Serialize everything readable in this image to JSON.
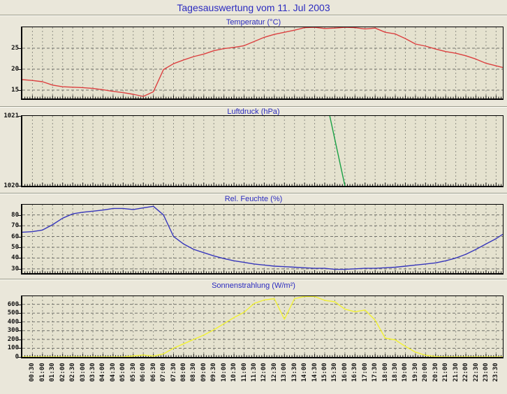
{
  "title": "Tagesauswertung vom 11. Jul 2003",
  "colors": {
    "page_bg": "#eae7da",
    "plot_bg": "#e5e2cf",
    "title_text": "#2b2bc0",
    "axis_text": "#111111",
    "grid_vertical": "#8f8f85",
    "grid_horizontal": "#70706a",
    "temperature_line": "#dc4040",
    "pressure_line": "#18a044",
    "humidity_line": "#3636bc",
    "solar_line": "#f2f232"
  },
  "x_axis": {
    "labels": [
      "00:30",
      "01:00",
      "01:30",
      "02:00",
      "02:30",
      "03:00",
      "03:30",
      "04:00",
      "04:30",
      "05:00",
      "05:30",
      "06:00",
      "06:30",
      "07:00",
      "07:30",
      "08:00",
      "08:30",
      "09:00",
      "09:30",
      "10:00",
      "10:30",
      "11:00",
      "11:30",
      "12:00",
      "12:30",
      "13:00",
      "13:30",
      "14:00",
      "14:30",
      "15:00",
      "15:30",
      "16:00",
      "16:30",
      "17:00",
      "17:30",
      "18:00",
      "18:30",
      "19:00",
      "19:30",
      "20:00",
      "20:30",
      "21:00",
      "21:30",
      "22:00",
      "22:30",
      "23:00",
      "23:30"
    ],
    "start_hour": 0,
    "end_hour": 23.8333,
    "label_interval_minutes": 30,
    "minor_tick_interval_minutes": 7.5
  },
  "chart_data": [
    {
      "type": "line",
      "id": "temperature",
      "title": "Temperatur (°C)",
      "color": "#dc4040",
      "y_ticks": [
        15,
        20,
        25
      ],
      "y_min": 13.0,
      "y_max": 30.0,
      "grid": true,
      "x": [
        0,
        0.5,
        1,
        1.5,
        2,
        2.5,
        3,
        3.5,
        4,
        4.5,
        5,
        5.5,
        6,
        6.5,
        7,
        7.5,
        8,
        8.5,
        9,
        9.5,
        10,
        10.5,
        11,
        11.5,
        12,
        12.5,
        13,
        13.5,
        14,
        14.5,
        15,
        15.5,
        16,
        16.5,
        17,
        17.5,
        18,
        18.5,
        19,
        19.5,
        20,
        20.5,
        21,
        21.5,
        22,
        22.5,
        23,
        23.5,
        23.83
      ],
      "values": [
        17.5,
        17.3,
        17.0,
        16.2,
        15.8,
        15.7,
        15.6,
        15.4,
        15.1,
        14.7,
        14.4,
        14.0,
        13.5,
        14.6,
        19.9,
        21.3,
        22.2,
        23.0,
        23.6,
        24.4,
        24.9,
        25.2,
        25.6,
        26.6,
        27.6,
        28.3,
        28.8,
        29.3,
        29.9,
        30.0,
        29.7,
        29.8,
        30.0,
        29.9,
        29.6,
        29.8,
        28.8,
        28.4,
        27.3,
        26.0,
        25.5,
        24.8,
        24.2,
        23.8,
        23.2,
        22.4,
        21.4,
        20.8,
        20.4
      ]
    },
    {
      "type": "line",
      "id": "pressure",
      "title": "Luftdruck (hPa)",
      "color": "#18a044",
      "y_ticks": [
        1020,
        1021
      ],
      "y_min": 1020,
      "y_max": 1021,
      "grid": true,
      "x": [
        15.25,
        16.0
      ],
      "values": [
        1021,
        1020
      ]
    },
    {
      "type": "line",
      "id": "humidity",
      "title": "Rel. Feuchte (%)",
      "color": "#3636bc",
      "y_ticks": [
        30,
        40,
        50,
        60,
        70,
        80
      ],
      "y_min": 26,
      "y_max": 89.5,
      "grid": true,
      "x": [
        0,
        0.5,
        1,
        1.5,
        2,
        2.5,
        3,
        3.5,
        4,
        4.5,
        5,
        5.5,
        6,
        6.5,
        7,
        7.5,
        8,
        8.5,
        9,
        9.5,
        10,
        10.5,
        11,
        11.5,
        12,
        12.5,
        13,
        13.5,
        14,
        14.5,
        15,
        15.5,
        16,
        16.5,
        17,
        17.5,
        18,
        18.5,
        19,
        19.5,
        20,
        20.5,
        21,
        21.5,
        22,
        22.5,
        23,
        23.5,
        23.83
      ],
      "values": [
        64,
        64.5,
        66,
        71,
        77,
        81,
        82.5,
        83.5,
        84.5,
        86,
        86,
        85,
        86.5,
        88,
        80,
        60,
        53,
        48,
        45,
        42,
        39.5,
        37.5,
        36,
        34.5,
        33.5,
        32.5,
        32,
        31.5,
        31,
        30.5,
        30.5,
        29.5,
        29.5,
        30,
        30.5,
        30.5,
        31,
        31.5,
        32.5,
        33.5,
        34.5,
        35.5,
        37.5,
        40,
        43.5,
        48,
        53,
        58,
        62
      ]
    },
    {
      "type": "line",
      "id": "solar",
      "title": "Sonnenstrahlung (W/m²)",
      "color": "#f2f232",
      "y_ticks": [
        0,
        100,
        200,
        300,
        400,
        500,
        600
      ],
      "y_min": 0,
      "y_max": 693,
      "grid": true,
      "x": [
        0,
        0.5,
        1,
        1.5,
        2,
        2.5,
        3,
        3.5,
        4,
        4.5,
        5,
        5.5,
        6,
        6.5,
        7,
        7.5,
        8,
        8.5,
        9,
        9.5,
        10,
        10.5,
        11,
        11.5,
        12,
        12.5,
        13,
        13.5,
        14,
        14.5,
        15,
        15.5,
        16,
        16.5,
        17,
        17.5,
        18,
        18.5,
        19,
        19.5,
        20,
        20.5,
        21,
        21.5,
        22,
        22.5,
        23,
        23.5,
        23.83
      ],
      "values": [
        0,
        0,
        0,
        0,
        0,
        0,
        0,
        0,
        0,
        0,
        0,
        12,
        22,
        10,
        35,
        100,
        150,
        200,
        250,
        310,
        380,
        450,
        510,
        610,
        650,
        665,
        430,
        665,
        690,
        690,
        645,
        630,
        545,
        515,
        535,
        420,
        215,
        195,
        120,
        55,
        20,
        5,
        0,
        0,
        0,
        0,
        0,
        0,
        0
      ]
    }
  ]
}
